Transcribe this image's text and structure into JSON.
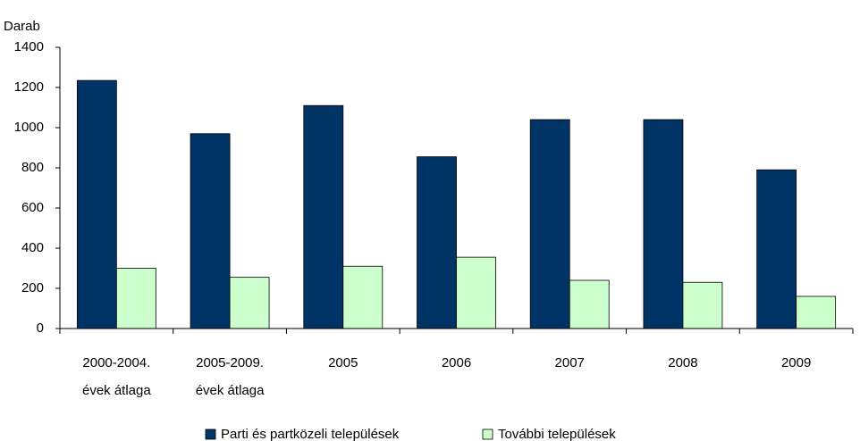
{
  "chart_data": {
    "type": "bar",
    "y_label": "Darab",
    "categories": [
      [
        "2000-2004.",
        "évek átlaga"
      ],
      [
        "2005-2009.",
        "évek átlaga"
      ],
      [
        "2005"
      ],
      [
        "2006"
      ],
      [
        "2007"
      ],
      [
        "2008"
      ],
      [
        "2009"
      ]
    ],
    "series": [
      {
        "name": "Parti és partközeli települések",
        "color": "#003366",
        "values": [
          1235,
          970,
          1110,
          855,
          1040,
          1040,
          790
        ]
      },
      {
        "name": "További települések",
        "color": "#ccffcc",
        "values": [
          300,
          255,
          310,
          355,
          240,
          230,
          160
        ]
      }
    ],
    "ylim": [
      0,
      1400
    ],
    "yticks": [
      0,
      200,
      400,
      600,
      800,
      1000,
      1200,
      1400
    ],
    "grid": false,
    "legend": "bottom"
  }
}
